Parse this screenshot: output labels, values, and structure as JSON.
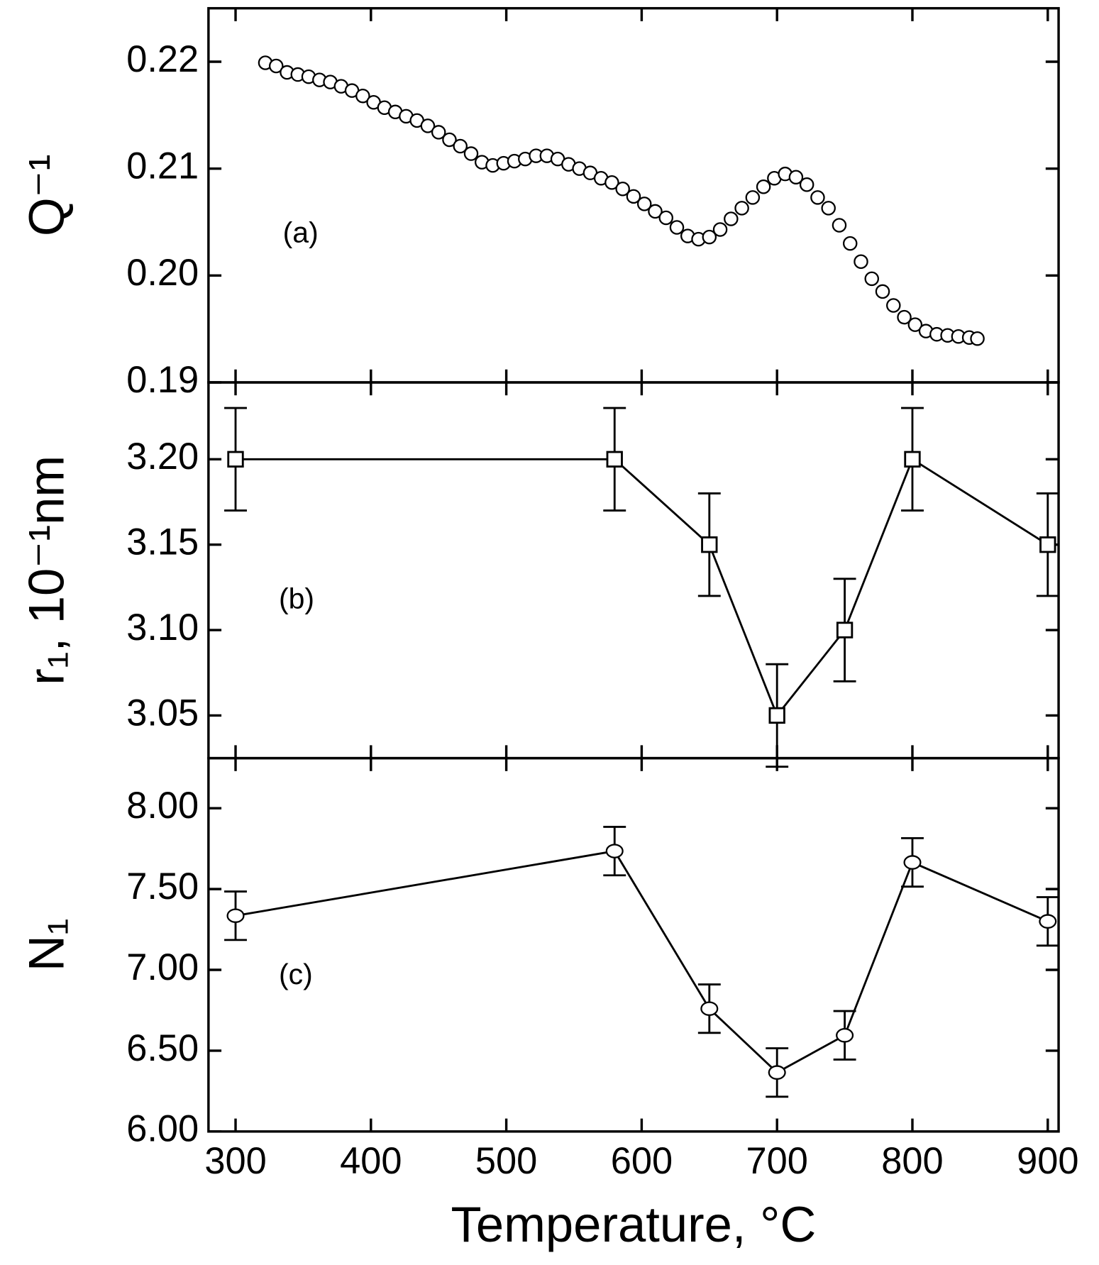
{
  "chart_data": [
    {
      "type": "scatter",
      "panel_label": "(a)",
      "ylabel": "Q⁻¹",
      "marker": "circle",
      "color": "#000000",
      "x": [
        322,
        330,
        338,
        346,
        354,
        362,
        370,
        378,
        386,
        394,
        402,
        410,
        418,
        426,
        434,
        442,
        450,
        458,
        466,
        474,
        482,
        490,
        498,
        506,
        514,
        522,
        530,
        538,
        546,
        554,
        562,
        570,
        578,
        586,
        594,
        602,
        610,
        618,
        626,
        634,
        642,
        650,
        658,
        666,
        674,
        682,
        690,
        698,
        706,
        714,
        722,
        730,
        738,
        746,
        754,
        762,
        770,
        778,
        786,
        794,
        802,
        810,
        818,
        826,
        834,
        842,
        848
      ],
      "values": [
        0.2199,
        0.2196,
        0.219,
        0.2188,
        0.2186,
        0.2183,
        0.2181,
        0.2177,
        0.2173,
        0.2168,
        0.2162,
        0.2157,
        0.2153,
        0.2149,
        0.2145,
        0.214,
        0.2134,
        0.2127,
        0.2121,
        0.2114,
        0.2106,
        0.2103,
        0.2105,
        0.2107,
        0.2109,
        0.2112,
        0.2112,
        0.2109,
        0.2104,
        0.21,
        0.2096,
        0.2091,
        0.2087,
        0.2081,
        0.2074,
        0.2067,
        0.206,
        0.2054,
        0.2045,
        0.2037,
        0.2034,
        0.2036,
        0.2043,
        0.2053,
        0.2063,
        0.2073,
        0.2083,
        0.2091,
        0.2095,
        0.2092,
        0.2085,
        0.2073,
        0.2063,
        0.2047,
        0.203,
        0.2013,
        0.1997,
        0.1985,
        0.1972,
        0.1961,
        0.1954,
        0.1948,
        0.1945,
        0.1944,
        0.1943,
        0.1942,
        0.1941
      ],
      "xlim": [
        280,
        908
      ],
      "xticks": [
        300,
        400,
        500,
        600,
        700,
        800,
        900
      ],
      "ylim": [
        0.19,
        0.225
      ],
      "yticks": [
        {
          "value": 0.19,
          "label": "0.19"
        },
        {
          "value": 0.2,
          "label": "0.20"
        },
        {
          "value": 0.21,
          "label": "0.21"
        },
        {
          "value": 0.22,
          "label": "0.22"
        }
      ]
    },
    {
      "type": "line",
      "panel_label": "(b)",
      "ylabel": "r₁, 10⁻¹nm",
      "marker": "square",
      "color": "#000000",
      "x": [
        300,
        580,
        650,
        700,
        750,
        800,
        900
      ],
      "values": [
        3.2,
        3.2,
        3.15,
        3.05,
        3.1,
        3.2,
        3.15
      ],
      "errors": [
        0.03,
        0.03,
        0.03,
        0.03,
        0.03,
        0.03,
        0.03
      ],
      "xlim": [
        280,
        908
      ],
      "xticks": [
        300,
        400,
        500,
        600,
        700,
        800,
        900
      ],
      "ylim": [
        3.025,
        3.245
      ],
      "yticks": [
        {
          "value": 3.05,
          "label": "3.05"
        },
        {
          "value": 3.1,
          "label": "3.10"
        },
        {
          "value": 3.15,
          "label": "3.15"
        },
        {
          "value": 3.2,
          "label": "3.20"
        }
      ]
    },
    {
      "type": "line",
      "panel_label": "(c)",
      "ylabel": "N₁",
      "xlabel": "Temperature, °C",
      "marker": "circle",
      "color": "#000000",
      "x": [
        300,
        580,
        650,
        700,
        750,
        800,
        900
      ],
      "values": [
        7.335,
        7.735,
        6.76,
        6.365,
        6.595,
        7.665,
        7.3
      ],
      "errors": [
        0.15,
        0.15,
        0.15,
        0.15,
        0.15,
        0.15,
        0.15
      ],
      "xlim": [
        280,
        908
      ],
      "xticks": [
        300,
        400,
        500,
        600,
        700,
        800,
        900
      ],
      "ylim": [
        6.0,
        8.31
      ],
      "yticks": [
        {
          "value": 6,
          "label": "6.00"
        },
        {
          "value": 6.5,
          "label": "6.50"
        },
        {
          "value": 7,
          "label": "7.00"
        },
        {
          "value": 7.5,
          "label": "7.50"
        },
        {
          "value": 8,
          "label": "8.00"
        }
      ]
    }
  ]
}
